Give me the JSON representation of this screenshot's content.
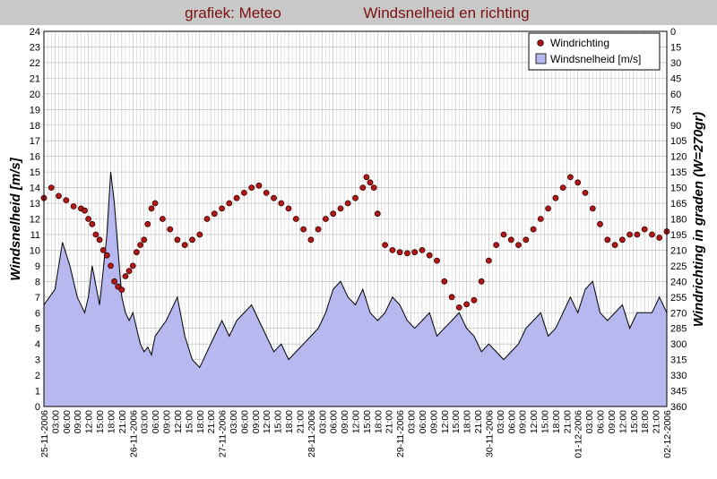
{
  "header": {
    "left_title": "grafiek: Meteo",
    "right_title": "Windsnelheid en richting"
  },
  "colors": {
    "title_bar": "#c8c8c8",
    "title_text": "#7a1010",
    "area_fill": "#b8b8f0",
    "speed_line": "#000000",
    "marker_fill": "#b01818",
    "marker_stroke": "#3a0000",
    "grid": "#b8b8b8"
  },
  "chart_data": {
    "type": "area",
    "title": "Windsnelheid en richting",
    "ylabel": "Windsnelheid [m/s]",
    "y2label": "Windrichting in graden (W=270gr)",
    "ylim": [
      0,
      24
    ],
    "y2lim": [
      0,
      360
    ],
    "y2_inverted": true,
    "yticks": [
      "0",
      "1",
      "2",
      "3",
      "4",
      "5",
      "6",
      "7",
      "8",
      "9",
      "10",
      "11",
      "12",
      "13",
      "14",
      "15",
      "16",
      "17",
      "18",
      "19",
      "20",
      "21",
      "22",
      "23",
      "24"
    ],
    "y2ticks": [
      "0",
      "15",
      "30",
      "45",
      "60",
      "75",
      "90",
      "105",
      "120",
      "135",
      "150",
      "165",
      "180",
      "195",
      "210",
      "225",
      "240",
      "255",
      "270",
      "285",
      "300",
      "315",
      "330",
      "345",
      "360"
    ],
    "x_range_hours": [
      0,
      168
    ],
    "grid": true,
    "legend": {
      "position": "top-right",
      "entries": [
        "Windrichting",
        "Windsnelheid [m/s]"
      ]
    },
    "xtick_labels": [
      "25-11-2006",
      "03:00",
      "06:00",
      "09:00",
      "12:00",
      "15:00",
      "18:00",
      "21:00",
      "26-11-2006",
      "03:00",
      "06:00",
      "09:00",
      "12:00",
      "15:00",
      "18:00",
      "21:00",
      "27-11-2006",
      "03:00",
      "06:00",
      "09:00",
      "12:00",
      "15:00",
      "18:00",
      "21:00",
      "28-11-2006",
      "03:00",
      "06:00",
      "09:00",
      "12:00",
      "15:00",
      "18:00",
      "21:00",
      "29-11-2006",
      "03:00",
      "06:00",
      "09:00",
      "12:00",
      "15:00",
      "18:00",
      "21:00",
      "30-11-2006",
      "03:00",
      "06:00",
      "09:00",
      "12:00",
      "15:00",
      "18:00",
      "21:00",
      "01-12-2006",
      "03:00",
      "06:00",
      "09:00",
      "12:00",
      "15:00",
      "18:00",
      "21:00",
      "02-12-2006"
    ],
    "series": [
      {
        "name": "Windsnelheid [m/s]",
        "kind": "area",
        "x": [
          0,
          3,
          5,
          7,
          9,
          11,
          12,
          13,
          15,
          17,
          18,
          19,
          20,
          21,
          22,
          23,
          24,
          25,
          26,
          27,
          28,
          29,
          30,
          33,
          36,
          38,
          40,
          42,
          44,
          46,
          48,
          50,
          52,
          54,
          56,
          58,
          60,
          62,
          64,
          66,
          68,
          70,
          72,
          74,
          76,
          78,
          80,
          82,
          84,
          86,
          88,
          90,
          92,
          94,
          96,
          98,
          100,
          102,
          104,
          106,
          108,
          110,
          112,
          114,
          116,
          118,
          120,
          122,
          124,
          126,
          128,
          130,
          132,
          134,
          136,
          138,
          140,
          142,
          144,
          146,
          148,
          150,
          152,
          154,
          156,
          158,
          160,
          162,
          164,
          166,
          168
        ],
        "y": [
          6.5,
          7.5,
          10.5,
          9,
          7,
          6,
          7,
          9,
          6.5,
          11,
          15,
          13,
          10,
          7,
          6,
          5.5,
          6,
          5,
          4,
          3.5,
          3.8,
          3.3,
          4.5,
          5.5,
          7,
          4.5,
          3,
          2.5,
          3.5,
          4.5,
          5.5,
          4.5,
          5.5,
          6,
          6.5,
          5.5,
          4.5,
          3.5,
          4,
          3,
          3.5,
          4,
          4.5,
          5,
          6,
          7.5,
          8,
          7,
          6.5,
          7.5,
          6,
          5.5,
          6,
          7,
          6.5,
          5.5,
          5,
          5.5,
          6,
          4.5,
          5,
          5.5,
          6,
          5,
          4.5,
          3.5,
          4,
          3.5,
          3,
          3.5,
          4,
          5,
          5.5,
          6,
          4.5,
          5,
          6,
          7,
          6,
          7.5,
          8,
          6,
          5.5,
          6,
          6.5,
          5,
          6,
          6,
          6,
          7,
          6
        ]
      },
      {
        "name": "Windrichting",
        "kind": "scatter",
        "x": [
          0,
          2,
          4,
          6,
          8,
          10,
          11,
          12,
          13,
          14,
          15,
          16,
          17,
          18,
          19,
          20,
          21,
          22,
          23,
          24,
          25,
          26,
          27,
          28,
          29,
          30,
          32,
          34,
          36,
          38,
          40,
          42,
          44,
          46,
          48,
          50,
          52,
          54,
          56,
          58,
          60,
          62,
          64,
          66,
          68,
          70,
          72,
          74,
          76,
          78,
          80,
          82,
          84,
          86,
          87,
          88,
          89,
          90,
          92,
          94,
          96,
          98,
          100,
          102,
          104,
          106,
          108,
          110,
          112,
          114,
          116,
          118,
          120,
          122,
          124,
          126,
          128,
          130,
          132,
          134,
          136,
          138,
          140,
          142,
          144,
          146,
          148,
          150,
          152,
          154,
          156,
          158,
          160,
          162,
          164,
          166,
          168
        ],
        "y": [
          160,
          150,
          158,
          162,
          168,
          170,
          172,
          180,
          185,
          195,
          200,
          210,
          215,
          225,
          240,
          245,
          248,
          235,
          230,
          225,
          212,
          205,
          200,
          185,
          170,
          165,
          180,
          190,
          200,
          205,
          200,
          195,
          180,
          175,
          170,
          165,
          160,
          155,
          150,
          148,
          155,
          160,
          165,
          170,
          180,
          190,
          200,
          190,
          180,
          175,
          170,
          165,
          160,
          150,
          140,
          145,
          150,
          175,
          205,
          210,
          212,
          213,
          212,
          210,
          215,
          220,
          240,
          255,
          265,
          262,
          258,
          240,
          220,
          205,
          195,
          200,
          205,
          200,
          190,
          180,
          170,
          160,
          150,
          140,
          145,
          155,
          170,
          185,
          200,
          205,
          200,
          195,
          195,
          190,
          195,
          198,
          192
        ]
      }
    ]
  }
}
